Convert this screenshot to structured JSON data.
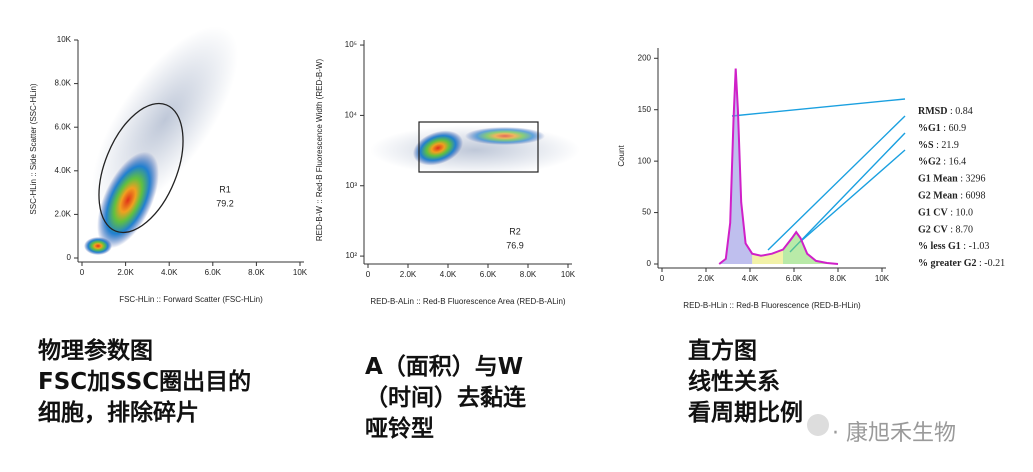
{
  "chart_data": [
    {
      "type": "scatter",
      "x_label": "FSC-HLin :: Forward Scatter (FSC-HLin)",
      "y_label": "SSC-HLin :: Side Scatter (SSC-HLin)",
      "xlim": [
        0,
        10000
      ],
      "ylim": [
        0,
        10000
      ],
      "xticks": [
        0,
        {
          "value": 2000,
          "label": "2.0K"
        },
        {
          "value": 4000,
          "label": "4.0K"
        },
        {
          "value": 6000,
          "label": "6.0K"
        },
        {
          "value": 8000,
          "label": "8.0K"
        },
        {
          "value": 10000,
          "label": "10K"
        }
      ],
      "yticks": [
        0,
        {
          "value": 2000,
          "label": "2.0K"
        },
        {
          "value": 4000,
          "label": "4.0K"
        },
        {
          "value": 6000,
          "label": "6.0K"
        },
        {
          "value": 8000,
          "label": "8.0K"
        },
        {
          "value": 10000,
          "label": "10K"
        }
      ],
      "gate": {
        "name": "R1",
        "value": 79.2
      }
    },
    {
      "type": "scatter",
      "log_y": true,
      "x_label": "RED-B-ALin :: Red-B Fluorescence Area (RED-B-ALin)",
      "y_label": "RED-B-W :: Red-B Fluorescence Width (RED-B-W)",
      "xlim": [
        0,
        10000
      ],
      "ylim": [
        88,
        118000
      ],
      "xticks": [
        0,
        {
          "value": 2000,
          "label": "2.0K"
        },
        {
          "value": 4000,
          "label": "4.0K"
        },
        {
          "value": 6000,
          "label": "6.0K"
        },
        {
          "value": 8000,
          "label": "8.0K"
        },
        {
          "value": 10000,
          "label": "10K"
        }
      ],
      "yticks": [
        {
          "value": 100,
          "label": "10²"
        },
        {
          "value": 1000,
          "label": "10³"
        },
        {
          "value": 10000,
          "label": "10⁴"
        },
        {
          "value": 100000,
          "label": "10⁵"
        }
      ],
      "gate": {
        "name": "R2",
        "value": 76.9
      }
    },
    {
      "type": "line",
      "x_label": "RED-B-HLin :: Red-B Fluorescence (RED-B-HLin)",
      "y_label": "Count",
      "color": "#d020c8",
      "xlim": [
        0,
        10000
      ],
      "ylim": [
        0,
        210
      ],
      "xticks": [
        0,
        {
          "value": 2000,
          "label": "2.0K"
        },
        {
          "value": 4000,
          "label": "4.0K"
        },
        {
          "value": 6000,
          "label": "6.0K"
        },
        {
          "value": 8000,
          "label": "8.0K"
        },
        {
          "value": 10000,
          "label": "10K"
        }
      ],
      "yticks": [
        0,
        50,
        100,
        150,
        200
      ],
      "x": [
        2600,
        2900,
        3100,
        3250,
        3350,
        3450,
        3600,
        3800,
        4100,
        4500,
        5000,
        5500,
        5900,
        6100,
        6300,
        6600,
        7000,
        7500,
        8000
      ],
      "values": [
        0,
        5,
        40,
        140,
        190,
        150,
        60,
        20,
        10,
        8,
        10,
        14,
        25,
        31,
        25,
        10,
        3,
        1,
        0
      ],
      "stats": [
        {
          "name": "RMSD",
          "value": "0.84"
        },
        {
          "name": "%G1",
          "value": "60.9"
        },
        {
          "name": "%S",
          "value": "21.9"
        },
        {
          "name": "%G2",
          "value": "16.4"
        },
        {
          "name": "G1 Mean",
          "value": "3296"
        },
        {
          "name": "G2 Mean",
          "value": "6098"
        },
        {
          "name": "G1 CV",
          "value": "10.0"
        },
        {
          "name": "G2 CV",
          "value": "8.70"
        },
        {
          "name": "% less G1",
          "value": "-1.03"
        },
        {
          "name": "% greater G2",
          "value": "-0.21"
        }
      ]
    }
  ],
  "captions": [
    [
      "物理参数图",
      "FSC加SSC圈出目的",
      "细胞，排除碎片"
    ],
    [
      "A（面积）与W",
      "（时间）去黏连",
      "哑铃型"
    ],
    [
      "直方图",
      "线性关系",
      "看周期比例"
    ]
  ],
  "watermark": "· 康旭禾生物"
}
